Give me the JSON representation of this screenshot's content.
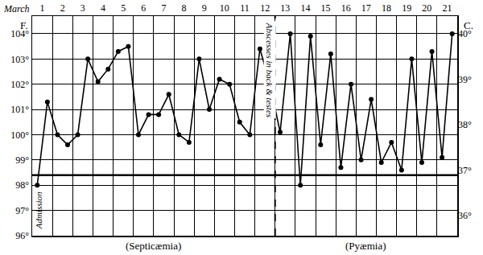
{
  "chart_data": {
    "type": "line",
    "color": "#000000",
    "marker": "circle",
    "grid": true,
    "x_label": "March",
    "y_label": "F.",
    "y2_label": "C.",
    "x": [
      1.25,
      1.75,
      2.25,
      2.75,
      3.25,
      3.75,
      4.25,
      4.75,
      5.25,
      5.75,
      6.25,
      6.75,
      7.25,
      7.75,
      8.25,
      8.75,
      9.25,
      9.75,
      10.25,
      10.75,
      11.25,
      11.75,
      12.25,
      12.75,
      13.25,
      13.75,
      14.25,
      14.75,
      15.25,
      15.75,
      16.25,
      16.75,
      17.25,
      17.75,
      18.25,
      18.75,
      19.25,
      19.75,
      20.25,
      20.75,
      21.25,
      21.75
    ],
    "values": [
      98.0,
      101.3,
      100.0,
      99.6,
      100.0,
      103.0,
      102.1,
      102.6,
      103.3,
      103.5,
      100.0,
      100.8,
      100.8,
      101.6,
      100.0,
      99.7,
      103.0,
      101.0,
      102.2,
      102.0,
      100.5,
      100.0,
      103.4,
      102.0,
      100.1,
      104.0,
      98.0,
      103.9,
      99.6,
      103.2,
      98.7,
      102.0,
      99.0,
      101.4,
      98.9,
      99.7,
      98.6,
      103.0,
      98.9,
      103.3,
      99.1,
      104.0
    ],
    "xlim": [
      1,
      22
    ],
    "xticks": [
      {
        "value": 1.5,
        "label": "1"
      },
      {
        "value": 2.5,
        "label": "2"
      },
      {
        "value": 3.5,
        "label": "3"
      },
      {
        "value": 4.5,
        "label": "4"
      },
      {
        "value": 5.5,
        "label": "5"
      },
      {
        "value": 6.5,
        "label": "6"
      },
      {
        "value": 7.5,
        "label": "7"
      },
      {
        "value": 8.5,
        "label": "8"
      },
      {
        "value": 9.5,
        "label": "9"
      },
      {
        "value": 10.5,
        "label": "10"
      },
      {
        "value": 11.5,
        "label": "11"
      },
      {
        "value": 12.5,
        "label": "12"
      },
      {
        "value": 13.5,
        "label": "13"
      },
      {
        "value": 14.5,
        "label": "14"
      },
      {
        "value": 15.5,
        "label": "15"
      },
      {
        "value": 16.5,
        "label": "16"
      },
      {
        "value": 17.5,
        "label": "17"
      },
      {
        "value": 18.5,
        "label": "18"
      },
      {
        "value": 19.5,
        "label": "19"
      },
      {
        "value": 20.5,
        "label": "20"
      },
      {
        "value": 21.5,
        "label": "21"
      }
    ],
    "ylim": [
      96,
      104.7
    ],
    "yticks": [
      {
        "value": 96,
        "label": "96°"
      },
      {
        "value": 97,
        "label": "97°"
      },
      {
        "value": 98,
        "label": "98°"
      },
      {
        "value": 99,
        "label": "99°"
      },
      {
        "value": 100,
        "label": "100°"
      },
      {
        "value": 101,
        "label": "101°"
      },
      {
        "value": 102,
        "label": "102°"
      },
      {
        "value": 103,
        "label": "103°"
      },
      {
        "value": 104,
        "label": "104°"
      }
    ],
    "y2lim": [
      35.56,
      40.39
    ],
    "y2ticks": [
      {
        "value": 36,
        "label": "36°"
      },
      {
        "value": 37,
        "label": "37°"
      },
      {
        "value": 38,
        "label": "38°"
      },
      {
        "value": 39,
        "label": "39°"
      },
      {
        "value": 40,
        "label": "40°"
      }
    ],
    "reference_line": 98.4,
    "first_point_label": "Admission",
    "event": {
      "x": 13,
      "label": "Abscesses in back & testes"
    },
    "phases": [
      {
        "label": "(Septicæmia)",
        "from": 1,
        "to": 13
      },
      {
        "label": "(Pyæmia)",
        "from": 13,
        "to": 22
      }
    ]
  }
}
